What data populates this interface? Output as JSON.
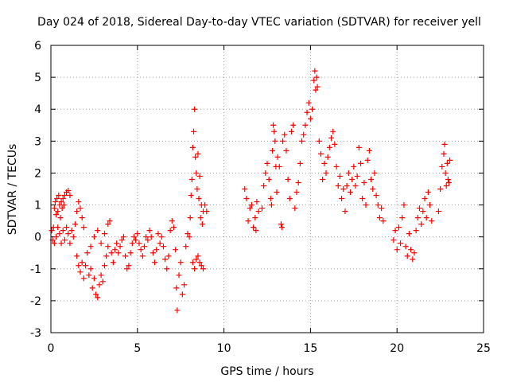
{
  "chart_data": {
    "type": "scatter",
    "title": "Day 024 of 2018, Sidereal Day-to-day VTEC variation (SDTVAR) for receiver yell",
    "xlabel": "GPS time / hours",
    "ylabel": "SDTVAR / TECUs",
    "xlim": [
      0,
      25
    ],
    "ylim": [
      -3,
      6
    ],
    "xticks": [
      "0",
      "5",
      "10",
      "15",
      "20",
      "25"
    ],
    "yticks": [
      "-3",
      "-2",
      "-1",
      "0",
      "1",
      "2",
      "3",
      "4",
      "5",
      "6"
    ],
    "grid": true,
    "marker": "+",
    "color": "#ff0000",
    "series": [
      {
        "name": "SDTVAR",
        "points": [
          [
            0.05,
            0.2
          ],
          [
            0.1,
            -0.1
          ],
          [
            0.15,
            0.3
          ],
          [
            0.2,
            0.9
          ],
          [
            0.25,
            1.1
          ],
          [
            0.3,
            0.7
          ],
          [
            0.35,
            1.2
          ],
          [
            0.4,
            0.8
          ],
          [
            0.45,
            1.3
          ],
          [
            0.5,
            1.0
          ],
          [
            0.55,
            0.6
          ],
          [
            0.6,
            1.1
          ],
          [
            0.65,
            0.9
          ],
          [
            0.7,
            1.2
          ],
          [
            0.75,
            1.0
          ],
          [
            0.8,
            1.3
          ],
          [
            0.9,
            1.4
          ],
          [
            1.0,
            1.45
          ],
          [
            1.1,
            1.3
          ],
          [
            0.2,
            -0.2
          ],
          [
            0.3,
            0.0
          ],
          [
            0.4,
            0.3
          ],
          [
            0.5,
            0.1
          ],
          [
            0.6,
            -0.2
          ],
          [
            0.7,
            0.2
          ],
          [
            0.8,
            -0.1
          ],
          [
            0.9,
            0.3
          ],
          [
            1.0,
            0.1
          ],
          [
            1.1,
            -0.2
          ],
          [
            1.2,
            0.2
          ],
          [
            1.3,
            0.0
          ],
          [
            1.4,
            0.4
          ],
          [
            1.5,
            0.8
          ],
          [
            1.6,
            1.1
          ],
          [
            1.7,
            0.9
          ],
          [
            1.8,
            0.6
          ],
          [
            1.9,
            0.3
          ],
          [
            1.5,
            -0.6
          ],
          [
            1.6,
            -0.9
          ],
          [
            1.7,
            -1.1
          ],
          [
            1.8,
            -0.8
          ],
          [
            1.9,
            -1.3
          ],
          [
            2.0,
            -0.9
          ],
          [
            2.1,
            -0.5
          ],
          [
            2.2,
            -1.2
          ],
          [
            2.3,
            -1.0
          ],
          [
            2.4,
            -1.6
          ],
          [
            2.5,
            -1.3
          ],
          [
            2.6,
            -1.8
          ],
          [
            2.7,
            -1.9
          ],
          [
            2.8,
            -1.5
          ],
          [
            2.9,
            -1.2
          ],
          [
            3.0,
            -1.4
          ],
          [
            3.1,
            -0.9
          ],
          [
            3.2,
            -0.6
          ],
          [
            3.3,
            -0.3
          ],
          [
            2.3,
            -0.3
          ],
          [
            2.5,
            0.0
          ],
          [
            2.7,
            0.2
          ],
          [
            2.9,
            -0.2
          ],
          [
            3.1,
            0.1
          ],
          [
            3.3,
            0.4
          ],
          [
            3.4,
            0.5
          ],
          [
            3.5,
            -0.5
          ],
          [
            3.6,
            -0.8
          ],
          [
            3.7,
            -0.4
          ],
          [
            3.8,
            -0.2
          ],
          [
            3.9,
            -0.5
          ],
          [
            4.0,
            -0.3
          ],
          [
            4.1,
            -0.1
          ],
          [
            4.2,
            0.0
          ],
          [
            4.3,
            -0.6
          ],
          [
            4.4,
            -1.0
          ],
          [
            4.5,
            -0.9
          ],
          [
            4.6,
            -0.5
          ],
          [
            4.7,
            -0.2
          ],
          [
            4.8,
            0.0
          ],
          [
            4.9,
            -0.1
          ],
          [
            5.0,
            0.1
          ],
          [
            5.1,
            -0.2
          ],
          [
            5.2,
            -0.4
          ],
          [
            5.3,
            -0.6
          ],
          [
            5.4,
            -0.3
          ],
          [
            5.5,
            0.0
          ],
          [
            5.6,
            -0.1
          ],
          [
            5.7,
            0.2
          ],
          [
            5.8,
            0.0
          ],
          [
            5.9,
            -0.5
          ],
          [
            6.0,
            -0.8
          ],
          [
            6.1,
            -0.4
          ],
          [
            6.2,
            0.1
          ],
          [
            6.3,
            -0.2
          ],
          [
            6.4,
            0.0
          ],
          [
            6.5,
            -0.3
          ],
          [
            6.6,
            -0.7
          ],
          [
            6.7,
            -1.0
          ],
          [
            6.8,
            -0.6
          ],
          [
            6.9,
            0.2
          ],
          [
            7.0,
            0.5
          ],
          [
            7.1,
            0.3
          ],
          [
            7.2,
            -0.4
          ],
          [
            7.25,
            -1.6
          ],
          [
            7.3,
            -2.3
          ],
          [
            7.4,
            -1.2
          ],
          [
            7.5,
            -0.8
          ],
          [
            7.6,
            -1.8
          ],
          [
            7.7,
            -1.5
          ],
          [
            7.8,
            -0.3
          ],
          [
            7.9,
            0.1
          ],
          [
            8.0,
            0.0
          ],
          [
            8.05,
            0.6
          ],
          [
            8.1,
            1.3
          ],
          [
            8.15,
            1.8
          ],
          [
            8.2,
            2.8
          ],
          [
            8.25,
            3.3
          ],
          [
            8.3,
            4.0
          ],
          [
            8.35,
            2.5
          ],
          [
            8.4,
            2.0
          ],
          [
            8.45,
            1.5
          ],
          [
            8.5,
            2.6
          ],
          [
            8.55,
            1.2
          ],
          [
            8.6,
            1.9
          ],
          [
            8.65,
            0.6
          ],
          [
            8.7,
            1.0
          ],
          [
            8.75,
            0.4
          ],
          [
            8.8,
            0.8
          ],
          [
            8.9,
            1.0
          ],
          [
            9.0,
            0.8
          ],
          [
            8.2,
            -0.8
          ],
          [
            8.3,
            -1.0
          ],
          [
            8.4,
            -0.7
          ],
          [
            8.5,
            -0.6
          ],
          [
            8.6,
            -0.8
          ],
          [
            8.7,
            -0.9
          ],
          [
            8.8,
            -1.0
          ],
          [
            11.2,
            1.5
          ],
          [
            11.3,
            1.2
          ],
          [
            11.4,
            0.5
          ],
          [
            11.5,
            0.9
          ],
          [
            11.6,
            1.0
          ],
          [
            11.7,
            0.3
          ],
          [
            11.8,
            0.6
          ],
          [
            11.85,
            0.2
          ],
          [
            11.9,
            1.1
          ],
          [
            12.0,
            0.8
          ],
          [
            12.2,
            0.9
          ],
          [
            12.3,
            1.6
          ],
          [
            12.4,
            2.0
          ],
          [
            12.5,
            2.3
          ],
          [
            12.6,
            1.8
          ],
          [
            12.7,
            1.2
          ],
          [
            12.75,
            1.0
          ],
          [
            12.8,
            2.7
          ],
          [
            12.85,
            3.5
          ],
          [
            12.9,
            3.3
          ],
          [
            12.95,
            3.0
          ],
          [
            13.0,
            2.2
          ],
          [
            13.05,
            1.4
          ],
          [
            13.1,
            2.5
          ],
          [
            13.2,
            2.2
          ],
          [
            13.3,
            0.4
          ],
          [
            13.35,
            0.3
          ],
          [
            13.4,
            3.0
          ],
          [
            13.5,
            3.2
          ],
          [
            13.6,
            2.7
          ],
          [
            13.7,
            1.8
          ],
          [
            13.8,
            1.2
          ],
          [
            13.9,
            3.3
          ],
          [
            14.0,
            3.5
          ],
          [
            14.1,
            0.9
          ],
          [
            14.2,
            1.4
          ],
          [
            14.3,
            1.7
          ],
          [
            14.4,
            2.3
          ],
          [
            14.5,
            3.0
          ],
          [
            14.6,
            3.2
          ],
          [
            14.7,
            3.5
          ],
          [
            14.8,
            3.9
          ],
          [
            14.9,
            4.2
          ],
          [
            15.0,
            3.7
          ],
          [
            15.1,
            4.0
          ],
          [
            15.2,
            4.9
          ],
          [
            15.25,
            5.2
          ],
          [
            15.3,
            4.6
          ],
          [
            15.35,
            5.0
          ],
          [
            15.4,
            4.7
          ],
          [
            15.5,
            3.0
          ],
          [
            15.6,
            2.6
          ],
          [
            15.7,
            1.8
          ],
          [
            15.8,
            2.3
          ],
          [
            15.9,
            2.0
          ],
          [
            16.0,
            2.5
          ],
          [
            16.1,
            2.8
          ],
          [
            16.2,
            3.1
          ],
          [
            16.3,
            3.3
          ],
          [
            16.4,
            2.9
          ],
          [
            16.5,
            2.2
          ],
          [
            16.6,
            1.6
          ],
          [
            16.7,
            1.9
          ],
          [
            16.8,
            1.2
          ],
          [
            16.9,
            1.5
          ],
          [
            17.0,
            0.8
          ],
          [
            17.1,
            1.6
          ],
          [
            17.2,
            2.0
          ],
          [
            17.3,
            1.4
          ],
          [
            17.4,
            1.8
          ],
          [
            17.5,
            2.2
          ],
          [
            17.6,
            1.6
          ],
          [
            17.7,
            1.9
          ],
          [
            17.8,
            2.8
          ],
          [
            17.9,
            2.3
          ],
          [
            18.0,
            1.2
          ],
          [
            18.1,
            1.7
          ],
          [
            18.2,
            1.0
          ],
          [
            18.3,
            2.4
          ],
          [
            18.4,
            2.7
          ],
          [
            18.5,
            1.8
          ],
          [
            18.6,
            1.5
          ],
          [
            18.7,
            2.0
          ],
          [
            18.8,
            1.3
          ],
          [
            18.9,
            1.0
          ],
          [
            19.0,
            0.6
          ],
          [
            19.1,
            0.9
          ],
          [
            19.2,
            0.5
          ],
          [
            19.8,
            -0.1
          ],
          [
            19.9,
            0.2
          ],
          [
            20.0,
            -0.4
          ],
          [
            20.1,
            0.3
          ],
          [
            20.2,
            -0.2
          ],
          [
            20.3,
            0.6
          ],
          [
            20.4,
            1.0
          ],
          [
            20.5,
            -0.3
          ],
          [
            20.6,
            -0.6
          ],
          [
            20.7,
            0.1
          ],
          [
            20.8,
            -0.4
          ],
          [
            20.9,
            -0.7
          ],
          [
            21.0,
            -0.5
          ],
          [
            21.1,
            0.2
          ],
          [
            21.2,
            0.6
          ],
          [
            21.3,
            0.9
          ],
          [
            21.4,
            0.4
          ],
          [
            21.5,
            0.8
          ],
          [
            21.6,
            1.2
          ],
          [
            21.7,
            0.6
          ],
          [
            21.8,
            1.4
          ],
          [
            21.9,
            1.0
          ],
          [
            22.0,
            0.5
          ],
          [
            22.4,
            0.8
          ],
          [
            22.5,
            1.5
          ],
          [
            22.6,
            2.2
          ],
          [
            22.7,
            2.6
          ],
          [
            22.75,
            2.9
          ],
          [
            22.8,
            2.0
          ],
          [
            22.85,
            1.6
          ],
          [
            22.9,
            2.3
          ],
          [
            22.95,
            1.8
          ],
          [
            23.0,
            1.7
          ],
          [
            23.05,
            2.4
          ]
        ]
      }
    ]
  }
}
